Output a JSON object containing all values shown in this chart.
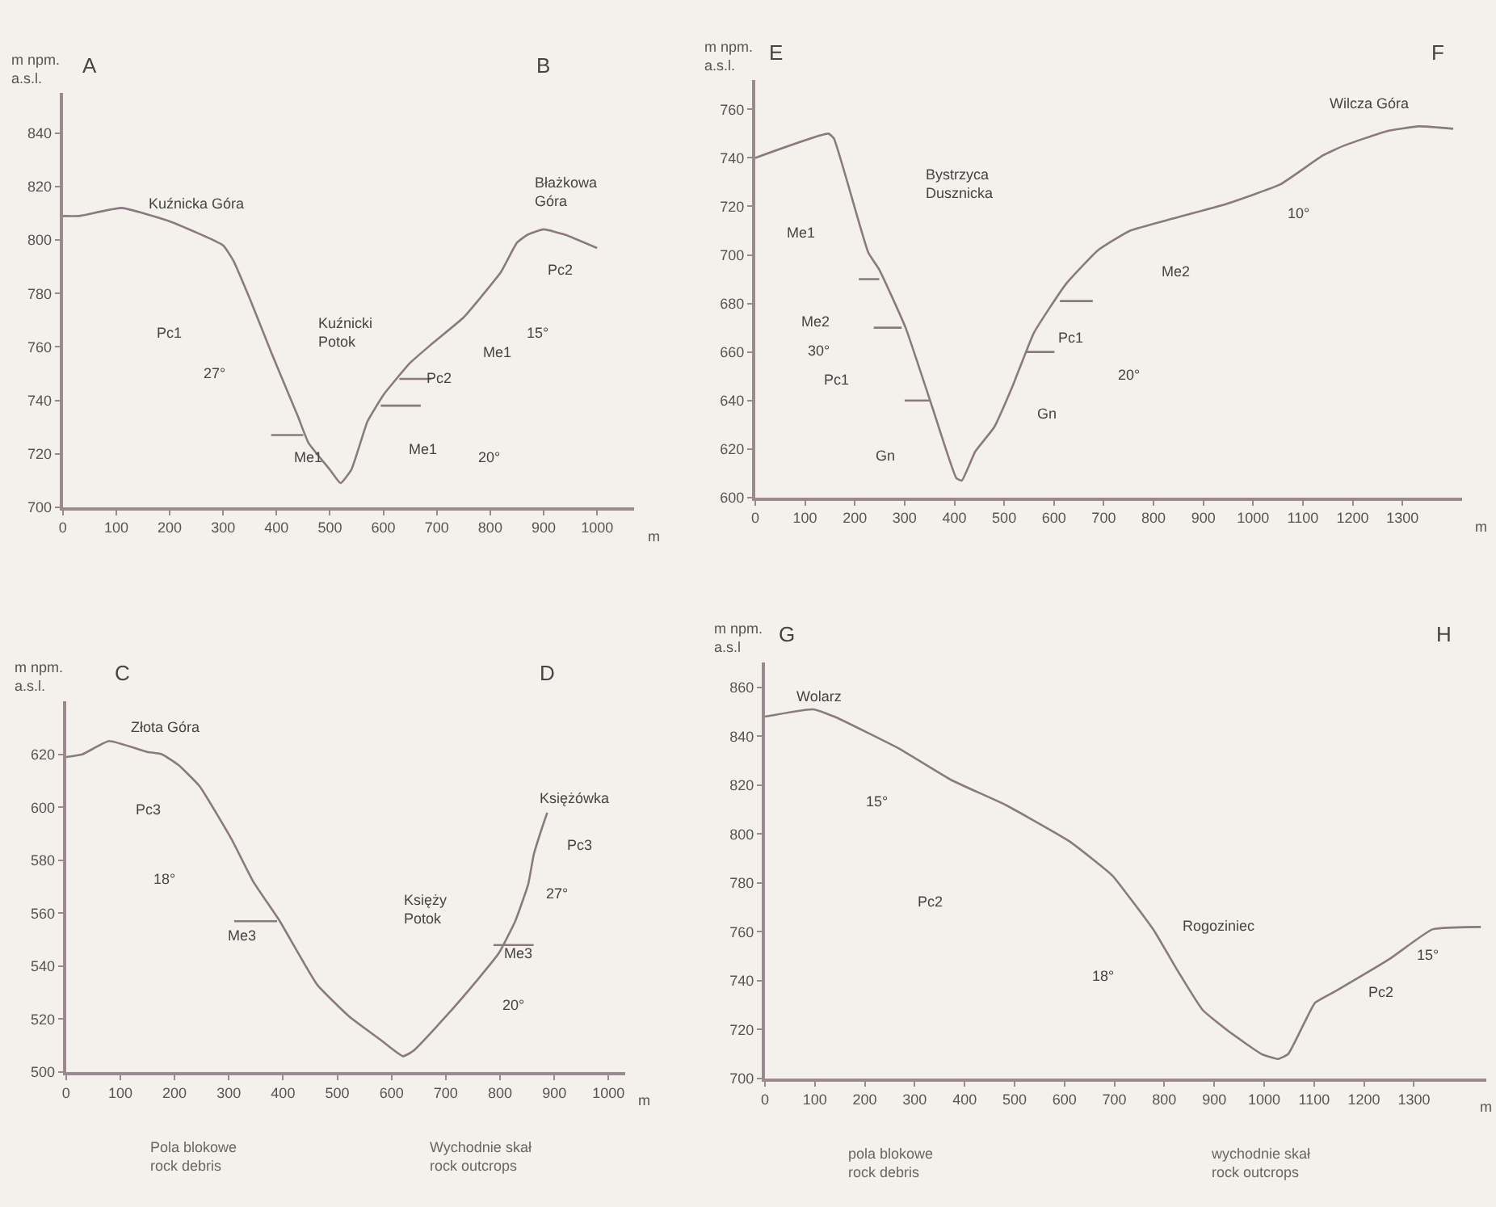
{
  "chart_data": [
    {
      "type": "line",
      "xlabel": "m",
      "ylabel": "m npm.\na.s.l.",
      "xlim": [
        0,
        1070
      ],
      "ylim": [
        700,
        855
      ],
      "xticks": [
        0,
        100,
        200,
        300,
        400,
        500,
        600,
        700,
        800,
        900,
        1000
      ],
      "yticks": [
        700,
        720,
        740,
        760,
        780,
        800,
        820,
        840
      ],
      "grid": false,
      "series": [
        {
          "color": "#8a7a80",
          "x": [
            0,
            30,
            110,
            200,
            300,
            320,
            350,
            390,
            440,
            460,
            500,
            520,
            540,
            560,
            570,
            600,
            650,
            690,
            750,
            780,
            820,
            850,
            870,
            900,
            940,
            1000
          ],
          "values": [
            809,
            809,
            812,
            807,
            798,
            792,
            778,
            758,
            734,
            724,
            714,
            709,
            714,
            726,
            732,
            742,
            754,
            761,
            771,
            778,
            788,
            799,
            802,
            804,
            802,
            797
          ]
        },
        {
          "color": "#8a7a80",
          "x": [
            390,
            450
          ],
          "values": [
            727,
            727
          ]
        },
        {
          "color": "#8a7a80",
          "x": [
            630,
            690
          ],
          "values": [
            748,
            748
          ]
        },
        {
          "color": "#8a7a80",
          "x": [
            595,
            670
          ],
          "values": [
            738,
            738
          ]
        }
      ],
      "annotations": [
        "A",
        "B",
        "Kuźnicka Góra",
        "Kuźnicki\nPotok",
        "Błażkowa\nGóra",
        "Pc2",
        "Pc1",
        "27°",
        "Me1",
        "Pc2",
        "Me1",
        "20°",
        "Me1",
        "15°"
      ]
    },
    {
      "type": "line",
      "xlabel": "m",
      "ylabel": "m npm.\na.s.l.",
      "xlim": [
        0,
        1420
      ],
      "ylim": [
        600,
        772
      ],
      "xticks": [
        0,
        100,
        200,
        300,
        400,
        500,
        600,
        700,
        800,
        900,
        1000,
        1100,
        1200,
        1300
      ],
      "yticks": [
        600,
        620,
        640,
        660,
        680,
        700,
        720,
        740,
        760
      ],
      "grid": false,
      "series": [
        {
          "color": "#8a7a80",
          "x": [
            0,
            147,
            158,
            227,
            249,
            302,
            356,
            404,
            415,
            442,
            480,
            517,
            560,
            624,
            689,
            753,
            839,
            946,
            1054,
            1140,
            1182,
            1268,
            1333,
            1402
          ],
          "values": [
            740,
            750,
            748,
            701,
            694,
            670,
            637,
            608,
            607,
            619,
            629,
            646,
            668,
            688,
            702,
            710,
            715,
            721,
            729,
            741,
            745,
            751,
            753,
            752
          ]
        },
        {
          "color": "#8a7a80",
          "x": [
            208,
            249
          ],
          "values": [
            690,
            690
          ]
        },
        {
          "color": "#8a7a80",
          "x": [
            238,
            294
          ],
          "values": [
            670,
            670
          ]
        },
        {
          "color": "#8a7a80",
          "x": [
            300,
            351
          ],
          "values": [
            640,
            640
          ]
        },
        {
          "color": "#8a7a80",
          "x": [
            612,
            678
          ],
          "values": [
            681,
            681
          ]
        },
        {
          "color": "#8a7a80",
          "x": [
            544,
            601
          ],
          "values": [
            660,
            660
          ]
        }
      ],
      "annotations": [
        "E",
        "F",
        "Bystrzyca\nDusznicka",
        "Wilcza Góra",
        "Me1",
        "Me2",
        "30°",
        "Pc1",
        "Gn",
        "Gn",
        "Pc1",
        "20°",
        "Me2",
        "10°"
      ]
    },
    {
      "type": "line",
      "xlabel": "m",
      "ylabel": "m npm.\na.s.l.",
      "xlim": [
        0,
        1030
      ],
      "ylim": [
        500,
        640
      ],
      "xticks": [
        0,
        100,
        200,
        300,
        400,
        500,
        600,
        700,
        800,
        900,
        1000
      ],
      "yticks": [
        500,
        520,
        540,
        560,
        580,
        600,
        620
      ],
      "grid": false,
      "series": [
        {
          "color": "#8a7a80",
          "x": [
            0,
            30,
            79,
            148,
            177,
            207,
            246,
            305,
            345,
            394,
            463,
            522,
            581,
            621,
            640,
            700,
            759,
            798,
            828,
            852,
            862,
            877,
            887
          ],
          "values": [
            619,
            620,
            625,
            621,
            620,
            616,
            608,
            588,
            572,
            557,
            533,
            521,
            512,
            506,
            508,
            521,
            535,
            545,
            557,
            571,
            582,
            592,
            598
          ]
        },
        {
          "color": "#8a7a80",
          "x": [
            310,
            389
          ],
          "values": [
            557,
            557
          ]
        },
        {
          "color": "#8a7a80",
          "x": [
            788,
            862
          ],
          "values": [
            548,
            548
          ]
        }
      ],
      "annotations": [
        "C",
        "D",
        "Złota Góra",
        "Pc3",
        "18°",
        "Me3",
        "Księży\nPotok",
        "Księżówka",
        "Pc3",
        "27°",
        "Me3",
        "20°",
        "Pola blokowe\nrock debris",
        "Wychodnie skał\nrock outcrops"
      ]
    },
    {
      "type": "line",
      "xlabel": "m",
      "ylabel": "m npm.\na.s.l",
      "xlim": [
        0,
        1445
      ],
      "ylim": [
        700,
        870
      ],
      "xticks": [
        0,
        100,
        200,
        300,
        400,
        500,
        600,
        700,
        800,
        900,
        1000,
        1100,
        1200,
        1300
      ],
      "yticks": [
        700,
        720,
        740,
        760,
        780,
        800,
        820,
        840,
        860
      ],
      "grid": false,
      "series": [
        {
          "color": "#8a7a80",
          "x": [
            0,
            96,
            139,
            268,
            374,
            481,
            610,
            696,
            738,
            781,
            824,
            877,
            931,
            995,
            1027,
            1048,
            1081,
            1102,
            1145,
            1252,
            1337,
            1434
          ],
          "values": [
            848,
            851,
            848,
            835,
            822,
            812,
            797,
            783,
            772,
            760,
            745,
            728,
            719,
            710,
            708,
            710,
            723,
            731,
            736,
            749,
            761,
            762
          ]
        }
      ],
      "annotations": [
        "G",
        "H",
        "Wolarz",
        "15°",
        "Pc2",
        "18°",
        "Rogoziniec",
        "Pc2",
        "15°",
        "pola blokowe\nrock debris",
        "wychodnie skał\nrock outcrops"
      ]
    }
  ]
}
